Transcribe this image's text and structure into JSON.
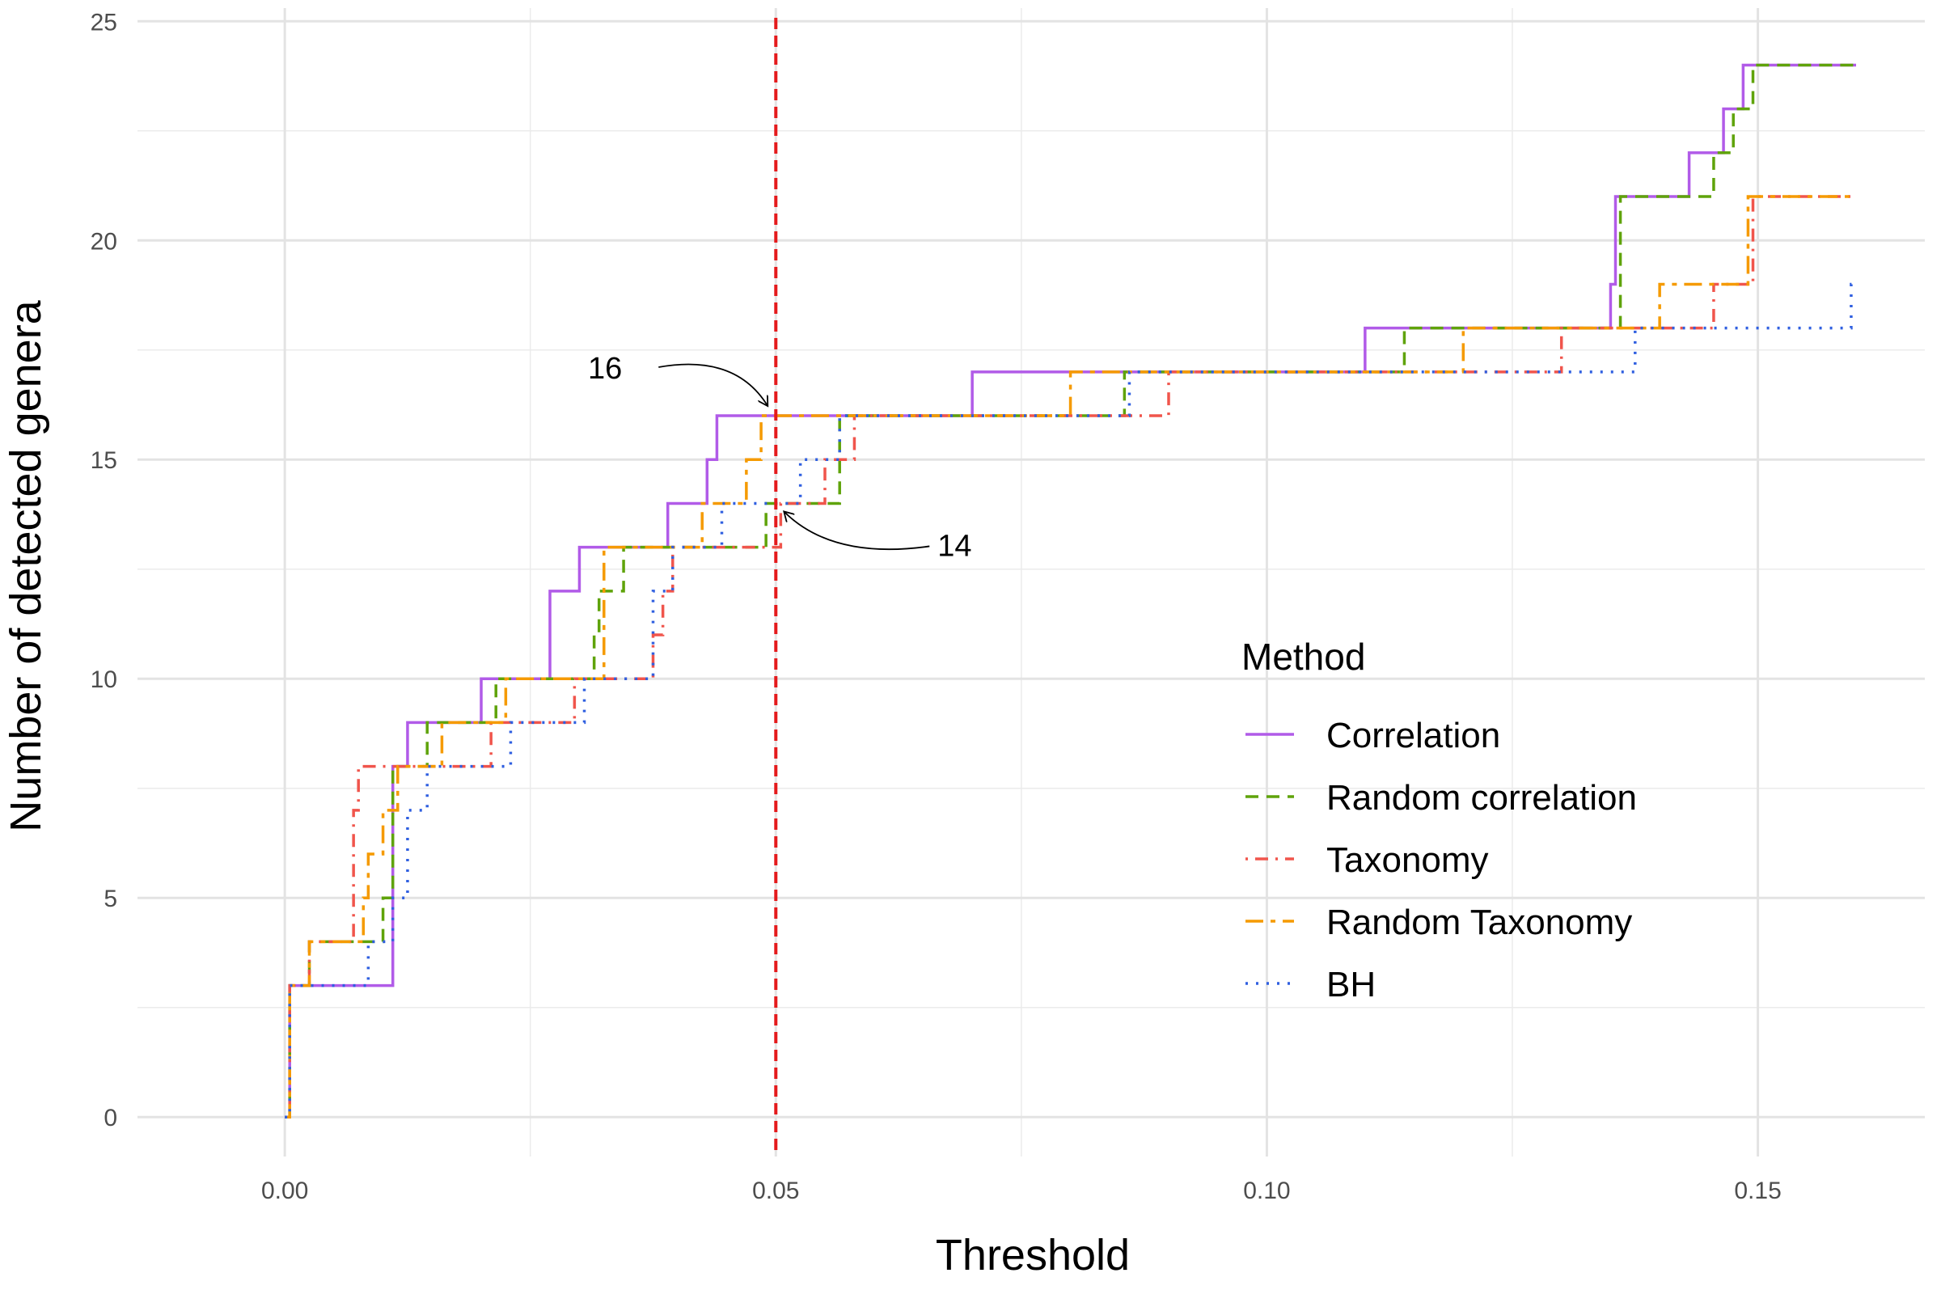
{
  "chart_data": {
    "type": "line",
    "step": true,
    "xlabel": "Threshold",
    "ylabel": "Number of detected genera",
    "xlim": [
      -0.015,
      0.167
    ],
    "ylim": [
      -0.9,
      25.3
    ],
    "x_ticks": [
      0.0,
      0.05,
      0.1,
      0.15
    ],
    "x_tick_labels": [
      "0.00",
      "0.05",
      "0.10",
      "0.15"
    ],
    "y_ticks": [
      0,
      5,
      10,
      15,
      20,
      25
    ],
    "y_tick_labels": [
      "0",
      "5",
      "10",
      "15",
      "20",
      "25"
    ],
    "grid": true,
    "legend_title": "Method",
    "legend_position": "right",
    "vline": {
      "x": 0.05,
      "color": "#e41a1c",
      "style": "dashed"
    },
    "annotations": [
      {
        "text": "16",
        "x": 0.05,
        "y": 16
      },
      {
        "text": "14",
        "x": 0.05,
        "y": 14
      }
    ],
    "series": [
      {
        "name": "Correlation",
        "color": "#b15be8",
        "dash": "solid",
        "x": [
          0.0,
          0.0005,
          0.011,
          0.012,
          0.0125,
          0.02,
          0.027,
          0.03,
          0.0305,
          0.039,
          0.043,
          0.044,
          0.07,
          0.11,
          0.135,
          0.1355,
          0.143,
          0.1465,
          0.1485,
          0.16
        ],
        "y": [
          0,
          3,
          8,
          8,
          9,
          10,
          12,
          13,
          13,
          14,
          15,
          16,
          17,
          18,
          19,
          21,
          22,
          23,
          24,
          24
        ]
      },
      {
        "name": "Random correlation",
        "color": "#5fa30a",
        "dash": "dashed",
        "x": [
          0.0,
          0.0005,
          0.0025,
          0.01,
          0.011,
          0.0145,
          0.0215,
          0.0315,
          0.032,
          0.0345,
          0.048,
          0.049,
          0.0565,
          0.0855,
          0.114,
          0.136,
          0.1455,
          0.1475,
          0.1495,
          0.16
        ],
        "y": [
          0,
          3,
          4,
          5,
          8,
          9,
          10,
          11,
          12,
          13,
          13,
          14,
          16,
          17,
          18,
          21,
          22,
          23,
          24,
          24
        ]
      },
      {
        "name": "Taxonomy",
        "color": "#f0554c",
        "dash": "dashdot",
        "x": [
          0.0,
          0.0005,
          0.0025,
          0.007,
          0.0075,
          0.0125,
          0.021,
          0.0295,
          0.0375,
          0.0385,
          0.0395,
          0.0495,
          0.0505,
          0.055,
          0.058,
          0.09,
          0.13,
          0.1455,
          0.1495,
          0.16
        ],
        "y": [
          0,
          3,
          4,
          7,
          8,
          8,
          9,
          10,
          11,
          12,
          13,
          13,
          14,
          15,
          16,
          17,
          18,
          19,
          21,
          21
        ]
      },
      {
        "name": "Random Taxonomy",
        "color": "#f59a00",
        "dash": "longdash",
        "x": [
          0.0,
          0.0005,
          0.0025,
          0.008,
          0.0085,
          0.01,
          0.0115,
          0.016,
          0.0225,
          0.0325,
          0.0425,
          0.047,
          0.0485,
          0.08,
          0.12,
          0.14,
          0.149,
          0.16
        ],
        "y": [
          0,
          3,
          4,
          5,
          6,
          7,
          8,
          9,
          10,
          13,
          14,
          15,
          16,
          17,
          18,
          19,
          21,
          21
        ]
      },
      {
        "name": "BH",
        "color": "#2f5fe0",
        "dash": "dotted",
        "x": [
          0.0,
          0.0005,
          0.0085,
          0.011,
          0.0125,
          0.0145,
          0.023,
          0.0305,
          0.0375,
          0.0395,
          0.0445,
          0.0525,
          0.0565,
          0.086,
          0.1375,
          0.1595,
          0.16
        ],
        "y": [
          0,
          3,
          4,
          5,
          7,
          8,
          9,
          10,
          12,
          13,
          14,
          15,
          16,
          17,
          18,
          19,
          19
        ]
      }
    ]
  }
}
